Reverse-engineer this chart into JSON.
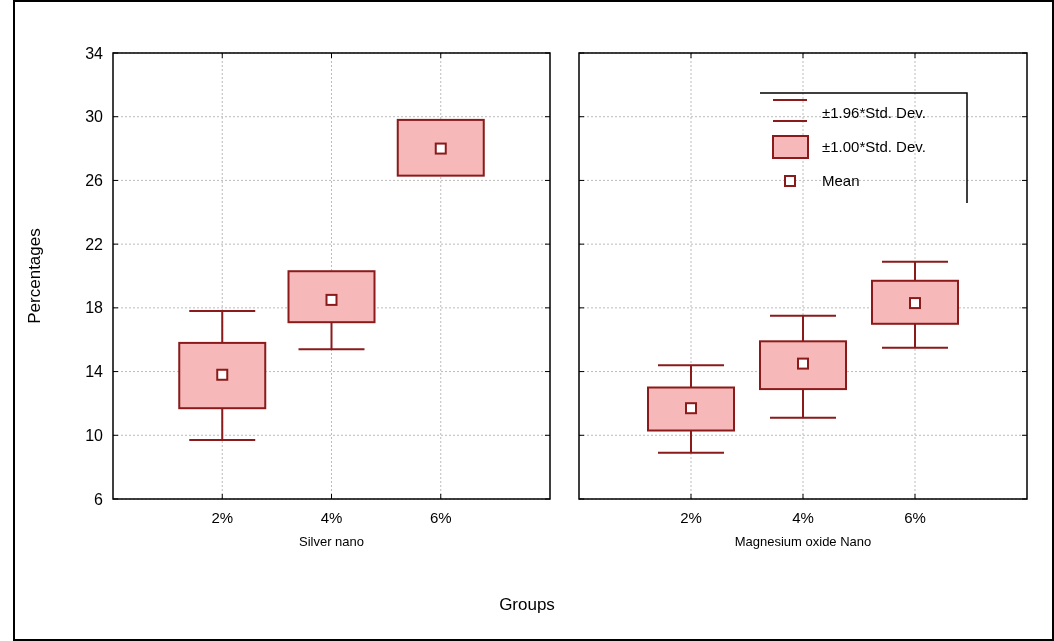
{
  "chart_data": [
    {
      "type": "box",
      "xlabel": "Silver nano",
      "ylabel": "Percentages",
      "categories": [
        "2%",
        "4%",
        "6%"
      ],
      "ylim": [
        6,
        34
      ],
      "yticks": [
        6,
        10,
        14,
        18,
        22,
        26,
        30,
        34
      ],
      "grid": true,
      "annotations": [
        "Groups"
      ],
      "series": [
        {
          "color": "#f6b8b8",
          "boxes": [
            {
              "low": 9.7,
              "q1": 11.7,
              "q3": 15.8,
              "high": 17.8,
              "mean": 13.8
            },
            {
              "low": 15.4,
              "q1": 17.1,
              "q3": 20.3,
              "high": null,
              "mean": 18.5
            },
            {
              "low": null,
              "q1": 26.3,
              "q3": 29.8,
              "high": null,
              "mean": 28.0
            }
          ]
        }
      ]
    },
    {
      "type": "box",
      "xlabel": "Magnesium oxide Nano",
      "categories": [
        "2%",
        "4%",
        "6%"
      ],
      "ylim": [
        6,
        34
      ],
      "yticks": [
        6,
        10,
        14,
        18,
        22,
        26,
        30,
        34
      ],
      "grid": true,
      "tick_labels": "x",
      "annotations": [
        "±1.96*Std. Dev.",
        "±1.00*Std. Dev.",
        "Mean"
      ],
      "series": [
        {
          "color": "#f6b8b8",
          "boxes": [
            {
              "low": 8.9,
              "q1": 10.3,
              "q3": 13.0,
              "high": 14.4,
              "mean": 11.7
            },
            {
              "low": 11.1,
              "q1": 12.9,
              "q3": 15.9,
              "high": 17.5,
              "mean": 14.5
            },
            {
              "low": 15.5,
              "q1": 17.0,
              "q3": 19.7,
              "high": 20.9,
              "mean": 18.3
            }
          ]
        }
      ]
    }
  ]
}
